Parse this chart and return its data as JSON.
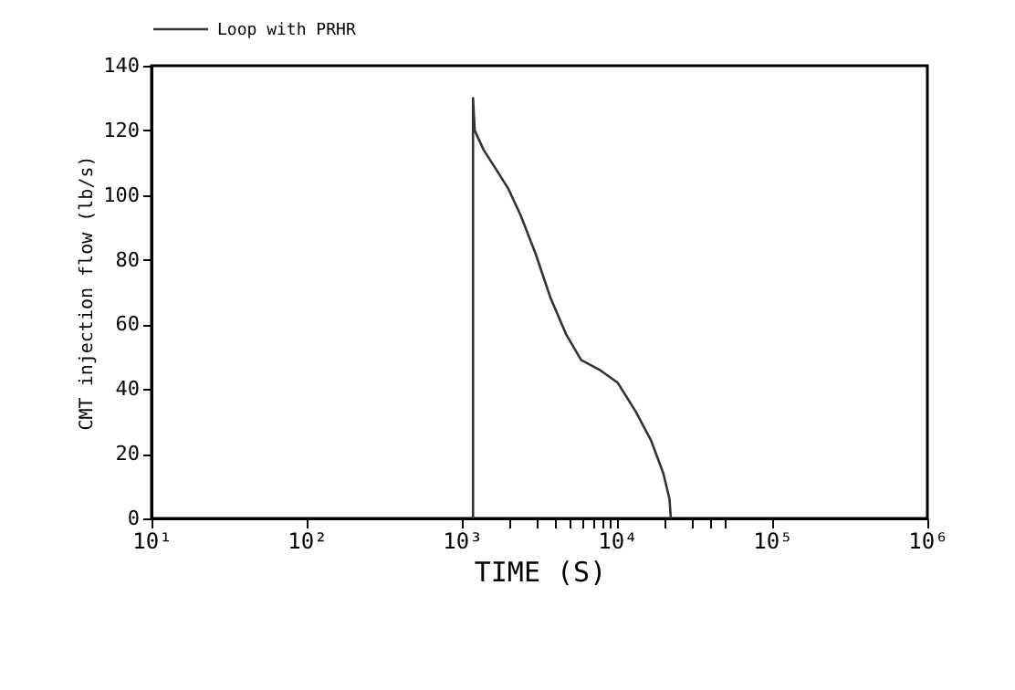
{
  "chart_data": {
    "type": "line",
    "xlabel": "TIME  (S)",
    "ylabel": "CMT injection flow (lb/s)",
    "log": "x",
    "grid": false,
    "legend": "top left",
    "line_style": "solid",
    "marker": "none",
    "xlim": [
      10,
      1000000
    ],
    "xticks": [
      {
        "value": 10,
        "label": "10¹"
      },
      {
        "value": 100,
        "label": "10²"
      },
      {
        "value": 1000,
        "label": "10³"
      },
      {
        "value": 10000,
        "label": "10⁴"
      },
      {
        "value": 100000,
        "label": "10⁵"
      },
      {
        "value": 1000000,
        "label": "10⁶"
      },
      {
        "value": 2000,
        "label": null
      },
      {
        "value": 3000,
        "label": null
      },
      {
        "value": 4000,
        "label": null
      },
      {
        "value": 5000,
        "label": null
      },
      {
        "value": 6000,
        "label": null
      },
      {
        "value": 7000,
        "label": null
      },
      {
        "value": 8000,
        "label": null
      },
      {
        "value": 9000,
        "label": null
      },
      {
        "value": 20000,
        "label": null
      },
      {
        "value": 30000,
        "label": null
      },
      {
        "value": 40000,
        "label": null
      },
      {
        "value": 50000,
        "label": null
      }
    ],
    "ylim": [
      0,
      140
    ],
    "yticks": [
      0,
      20,
      40,
      60,
      80,
      100,
      120,
      140
    ],
    "series": [
      {
        "name": "Loop with PRHR",
        "color": "#333333",
        "x": [
          1180,
          1180,
          1210,
          1380,
          1660,
          1990,
          2380,
          2980,
          3740,
          4690,
          5870,
          7690,
          10090,
          13220,
          16600,
          19860,
          21780,
          22230
        ],
        "values": [
          0,
          130,
          120,
          114,
          108,
          102,
          94,
          82,
          68,
          57,
          49,
          46,
          42,
          33,
          24,
          14,
          6,
          0
        ]
      }
    ]
  }
}
